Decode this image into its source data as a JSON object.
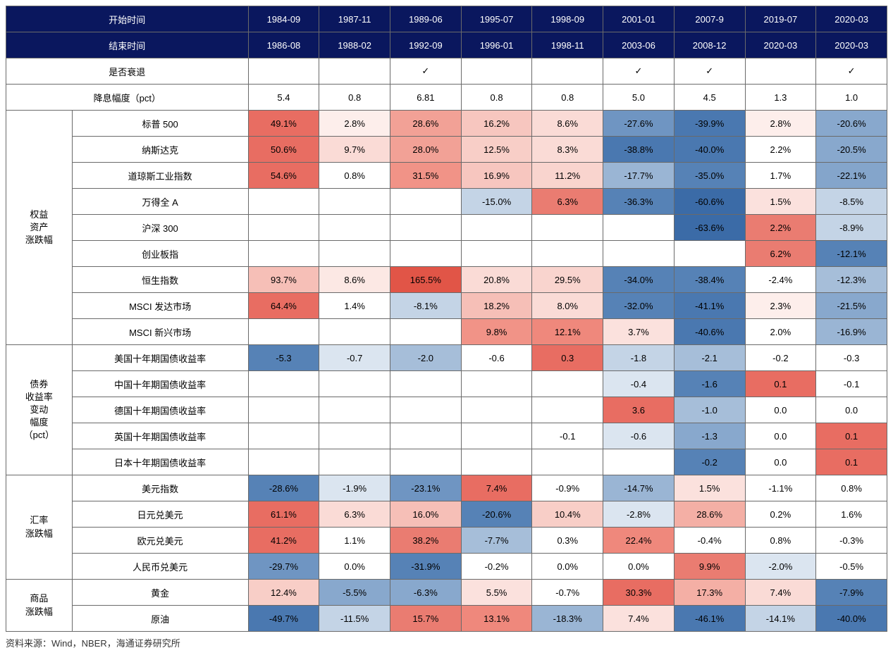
{
  "table": {
    "header": {
      "start_label": "开始时间",
      "end_label": "结束时间",
      "starts": [
        "1984-09",
        "1987-11",
        "1989-06",
        "1995-07",
        "1998-09",
        "2001-01",
        "2007-9",
        "2019-07",
        "2020-03"
      ],
      "ends": [
        "1986-08",
        "1988-02",
        "1992-09",
        "1996-01",
        "1998-11",
        "2003-06",
        "2008-12",
        "2020-03",
        "2020-03"
      ]
    },
    "recession": {
      "label": "是否衰退",
      "mark": "✓",
      "flags": [
        false,
        false,
        true,
        false,
        false,
        true,
        true,
        false,
        true
      ]
    },
    "rate_cut": {
      "label": "降息幅度（pct）",
      "values": [
        "5.4",
        "0.8",
        "6.81",
        "0.8",
        "0.8",
        "5.0",
        "4.5",
        "1.3",
        "1.0"
      ]
    },
    "groups": [
      {
        "label": "权益\n资产\n涨跌幅",
        "rows": [
          {
            "label": "标普 500",
            "cells": [
              {
                "v": "49.1%",
                "c": "#e86d62"
              },
              {
                "v": "2.8%",
                "c": "#fdeeeb"
              },
              {
                "v": "28.6%",
                "c": "#f2a196"
              },
              {
                "v": "16.2%",
                "c": "#f7c6bf"
              },
              {
                "v": "8.6%",
                "c": "#fadbd6"
              },
              {
                "v": "-27.6%",
                "c": "#6f95c2"
              },
              {
                "v": "-39.9%",
                "c": "#4a78b0"
              },
              {
                "v": "2.8%",
                "c": "#fdeeeb"
              },
              {
                "v": "-20.6%",
                "c": "#88a8cd"
              }
            ]
          },
          {
            "label": "纳斯达克",
            "cells": [
              {
                "v": "50.6%",
                "c": "#e86d62"
              },
              {
                "v": "9.7%",
                "c": "#fadbd6"
              },
              {
                "v": "28.0%",
                "c": "#f2a196"
              },
              {
                "v": "12.5%",
                "c": "#f8cec7"
              },
              {
                "v": "8.3%",
                "c": "#fadbd6"
              },
              {
                "v": "-38.8%",
                "c": "#4a78b0"
              },
              {
                "v": "-40.0%",
                "c": "#4a78b0"
              },
              {
                "v": "2.2%",
                "c": "#ffffff"
              },
              {
                "v": "-20.5%",
                "c": "#88a8cd"
              }
            ]
          },
          {
            "label": "道琼斯工业指数",
            "cells": [
              {
                "v": "54.6%",
                "c": "#e86d62"
              },
              {
                "v": "0.8%",
                "c": "#ffffff"
              },
              {
                "v": "31.5%",
                "c": "#f19387"
              },
              {
                "v": "16.9%",
                "c": "#f7c6bf"
              },
              {
                "v": "11.2%",
                "c": "#f9d4ce"
              },
              {
                "v": "-17.7%",
                "c": "#9ab5d4"
              },
              {
                "v": "-35.0%",
                "c": "#5682b6"
              },
              {
                "v": "1.7%",
                "c": "#ffffff"
              },
              {
                "v": "-22.1%",
                "c": "#84a5cb"
              }
            ]
          },
          {
            "label": "万得全 A",
            "cells": [
              {
                "v": "",
                "c": "#ffffff"
              },
              {
                "v": "",
                "c": "#ffffff"
              },
              {
                "v": "",
                "c": "#ffffff"
              },
              {
                "v": "-15.0%",
                "c": "#c4d4e6"
              },
              {
                "v": "6.3%",
                "c": "#ea7c71"
              },
              {
                "v": "-36.3%",
                "c": "#5682b6"
              },
              {
                "v": "-60.6%",
                "c": "#3b6ba7"
              },
              {
                "v": "1.5%",
                "c": "#fbe1dd"
              },
              {
                "v": "-8.5%",
                "c": "#c4d4e6"
              }
            ]
          },
          {
            "label": "沪深 300",
            "cells": [
              {
                "v": "",
                "c": "#ffffff"
              },
              {
                "v": "",
                "c": "#ffffff"
              },
              {
                "v": "",
                "c": "#ffffff"
              },
              {
                "v": "",
                "c": "#ffffff"
              },
              {
                "v": "",
                "c": "#ffffff"
              },
              {
                "v": "",
                "c": "#ffffff"
              },
              {
                "v": "-63.6%",
                "c": "#3b6ba7"
              },
              {
                "v": "2.2%",
                "c": "#ea7c71"
              },
              {
                "v": "-8.9%",
                "c": "#c4d4e6"
              }
            ]
          },
          {
            "label": "创业板指",
            "cells": [
              {
                "v": "",
                "c": "#ffffff"
              },
              {
                "v": "",
                "c": "#ffffff"
              },
              {
                "v": "",
                "c": "#ffffff"
              },
              {
                "v": "",
                "c": "#ffffff"
              },
              {
                "v": "",
                "c": "#ffffff"
              },
              {
                "v": "",
                "c": "#ffffff"
              },
              {
                "v": "",
                "c": "#ffffff"
              },
              {
                "v": "6.2%",
                "c": "#ea7c71"
              },
              {
                "v": "-12.1%",
                "c": "#5682b6"
              }
            ]
          },
          {
            "label": "恒生指数",
            "cells": [
              {
                "v": "93.7%",
                "c": "#f6bfb7"
              },
              {
                "v": "8.6%",
                "c": "#fce8e4"
              },
              {
                "v": "165.5%",
                "c": "#e15547"
              },
              {
                "v": "20.8%",
                "c": "#fadbd6"
              },
              {
                "v": "29.5%",
                "c": "#f9d4ce"
              },
              {
                "v": "-34.0%",
                "c": "#5682b6"
              },
              {
                "v": "-38.4%",
                "c": "#5682b6"
              },
              {
                "v": "-2.4%",
                "c": "#ffffff"
              },
              {
                "v": "-12.3%",
                "c": "#a6bed9"
              }
            ]
          },
          {
            "label": "MSCI 发达市场",
            "cells": [
              {
                "v": "64.4%",
                "c": "#e86d62"
              },
              {
                "v": "1.4%",
                "c": "#ffffff"
              },
              {
                "v": "-8.1%",
                "c": "#c4d4e6"
              },
              {
                "v": "18.2%",
                "c": "#f6bfb7"
              },
              {
                "v": "8.0%",
                "c": "#fadbd6"
              },
              {
                "v": "-32.0%",
                "c": "#5682b6"
              },
              {
                "v": "-41.1%",
                "c": "#4a78b0"
              },
              {
                "v": "2.3%",
                "c": "#fdeeeb"
              },
              {
                "v": "-21.5%",
                "c": "#88a8cd"
              }
            ]
          },
          {
            "label": "MSCI 新兴市场",
            "cells": [
              {
                "v": "",
                "c": "#ffffff"
              },
              {
                "v": "",
                "c": "#ffffff"
              },
              {
                "v": "",
                "c": "#ffffff"
              },
              {
                "v": "9.8%",
                "c": "#f19387"
              },
              {
                "v": "12.1%",
                "c": "#ef887c"
              },
              {
                "v": "3.7%",
                "c": "#fbe1dd"
              },
              {
                "v": "-40.6%",
                "c": "#4a78b0"
              },
              {
                "v": "2.0%",
                "c": "#ffffff"
              },
              {
                "v": "-16.9%",
                "c": "#9ab5d4"
              }
            ]
          }
        ]
      },
      {
        "label": "债券\n收益率\n变动\n幅度\n（pct）",
        "rows": [
          {
            "label": "美国十年期国债收益率",
            "cells": [
              {
                "v": "-5.3",
                "c": "#5682b6"
              },
              {
                "v": "-0.7",
                "c": "#dbe5f0"
              },
              {
                "v": "-2.0",
                "c": "#a6bed9"
              },
              {
                "v": "-0.6",
                "c": "#ffffff"
              },
              {
                "v": "0.3",
                "c": "#e86d62"
              },
              {
                "v": "-1.8",
                "c": "#c4d4e6"
              },
              {
                "v": "-2.1",
                "c": "#a6bed9"
              },
              {
                "v": "-0.2",
                "c": "#ffffff"
              },
              {
                "v": "-0.3",
                "c": "#ffffff"
              }
            ]
          },
          {
            "label": "中国十年期国债收益率",
            "cells": [
              {
                "v": "",
                "c": "#ffffff"
              },
              {
                "v": "",
                "c": "#ffffff"
              },
              {
                "v": "",
                "c": "#ffffff"
              },
              {
                "v": "",
                "c": "#ffffff"
              },
              {
                "v": "",
                "c": "#ffffff"
              },
              {
                "v": "-0.4",
                "c": "#dbe5f0"
              },
              {
                "v": "-1.6",
                "c": "#5682b6"
              },
              {
                "v": "0.1",
                "c": "#e86d62"
              },
              {
                "v": "-0.1",
                "c": "#ffffff"
              }
            ]
          },
          {
            "label": "德国十年期国债收益率",
            "cells": [
              {
                "v": "",
                "c": "#ffffff"
              },
              {
                "v": "",
                "c": "#ffffff"
              },
              {
                "v": "",
                "c": "#ffffff"
              },
              {
                "v": "",
                "c": "#ffffff"
              },
              {
                "v": "",
                "c": "#ffffff"
              },
              {
                "v": "3.6",
                "c": "#e86d62"
              },
              {
                "v": "-1.0",
                "c": "#a6bed9"
              },
              {
                "v": "0.0",
                "c": "#ffffff"
              },
              {
                "v": "0.0",
                "c": "#ffffff"
              }
            ]
          },
          {
            "label": "英国十年期国债收益率",
            "cells": [
              {
                "v": "",
                "c": "#ffffff"
              },
              {
                "v": "",
                "c": "#ffffff"
              },
              {
                "v": "",
                "c": "#ffffff"
              },
              {
                "v": "",
                "c": "#ffffff"
              },
              {
                "v": "-0.1",
                "c": "#ffffff"
              },
              {
                "v": "-0.6",
                "c": "#dbe5f0"
              },
              {
                "v": "-1.3",
                "c": "#88a8cd"
              },
              {
                "v": "0.0",
                "c": "#ffffff"
              },
              {
                "v": "0.1",
                "c": "#e86d62"
              }
            ]
          },
          {
            "label": "日本十年期国债收益率",
            "cells": [
              {
                "v": "",
                "c": "#ffffff"
              },
              {
                "v": "",
                "c": "#ffffff"
              },
              {
                "v": "",
                "c": "#ffffff"
              },
              {
                "v": "",
                "c": "#ffffff"
              },
              {
                "v": "",
                "c": "#ffffff"
              },
              {
                "v": "",
                "c": "#ffffff"
              },
              {
                "v": "-0.2",
                "c": "#5682b6"
              },
              {
                "v": "0.0",
                "c": "#ffffff"
              },
              {
                "v": "0.1",
                "c": "#e86d62"
              }
            ]
          }
        ]
      },
      {
        "label": "汇率\n涨跌幅",
        "rows": [
          {
            "label": "美元指数",
            "cells": [
              {
                "v": "-28.6%",
                "c": "#5682b6"
              },
              {
                "v": "-1.9%",
                "c": "#dbe5f0"
              },
              {
                "v": "-23.1%",
                "c": "#6f95c2"
              },
              {
                "v": "7.4%",
                "c": "#e86d62"
              },
              {
                "v": "-0.9%",
                "c": "#ffffff"
              },
              {
                "v": "-14.7%",
                "c": "#9ab5d4"
              },
              {
                "v": "1.5%",
                "c": "#fbe1dd"
              },
              {
                "v": "-1.1%",
                "c": "#ffffff"
              },
              {
                "v": "0.8%",
                "c": "#ffffff"
              }
            ]
          },
          {
            "label": "日元兑美元",
            "cells": [
              {
                "v": "61.1%",
                "c": "#e86d62"
              },
              {
                "v": "6.3%",
                "c": "#fadbd6"
              },
              {
                "v": "16.0%",
                "c": "#f6bfb7"
              },
              {
                "v": "-20.6%",
                "c": "#5682b6"
              },
              {
                "v": "10.4%",
                "c": "#f8cec7"
              },
              {
                "v": "-2.8%",
                "c": "#dbe5f0"
              },
              {
                "v": "28.6%",
                "c": "#f4afa5"
              },
              {
                "v": "0.2%",
                "c": "#ffffff"
              },
              {
                "v": "1.6%",
                "c": "#ffffff"
              }
            ]
          },
          {
            "label": "欧元兑美元",
            "cells": [
              {
                "v": "41.2%",
                "c": "#e86d62"
              },
              {
                "v": "1.1%",
                "c": "#ffffff"
              },
              {
                "v": "38.2%",
                "c": "#ea7c71"
              },
              {
                "v": "-7.7%",
                "c": "#a6bed9"
              },
              {
                "v": "0.3%",
                "c": "#ffffff"
              },
              {
                "v": "22.4%",
                "c": "#ef887c"
              },
              {
                "v": "-0.4%",
                "c": "#ffffff"
              },
              {
                "v": "0.8%",
                "c": "#ffffff"
              },
              {
                "v": "-0.3%",
                "c": "#ffffff"
              }
            ]
          },
          {
            "label": "人民币兑美元",
            "cells": [
              {
                "v": "-29.7%",
                "c": "#6f95c2"
              },
              {
                "v": "0.0%",
                "c": "#ffffff"
              },
              {
                "v": "-31.9%",
                "c": "#5682b6"
              },
              {
                "v": "-0.2%",
                "c": "#ffffff"
              },
              {
                "v": "0.0%",
                "c": "#ffffff"
              },
              {
                "v": "0.0%",
                "c": "#ffffff"
              },
              {
                "v": "9.9%",
                "c": "#ea7c71"
              },
              {
                "v": "-2.0%",
                "c": "#dbe5f0"
              },
              {
                "v": "-0.5%",
                "c": "#ffffff"
              }
            ]
          }
        ]
      },
      {
        "label": "商品\n涨跌幅",
        "rows": [
          {
            "label": "黄金",
            "cells": [
              {
                "v": "12.4%",
                "c": "#f8cec7"
              },
              {
                "v": "-5.5%",
                "c": "#88a8cd"
              },
              {
                "v": "-6.3%",
                "c": "#88a8cd"
              },
              {
                "v": "5.5%",
                "c": "#fbe1dd"
              },
              {
                "v": "-0.7%",
                "c": "#ffffff"
              },
              {
                "v": "30.3%",
                "c": "#e86d62"
              },
              {
                "v": "17.3%",
                "c": "#f4afa5"
              },
              {
                "v": "7.4%",
                "c": "#fadbd6"
              },
              {
                "v": "-7.9%",
                "c": "#5682b6"
              }
            ]
          },
          {
            "label": "原油",
            "cells": [
              {
                "v": "-49.7%",
                "c": "#4a78b0"
              },
              {
                "v": "-11.5%",
                "c": "#c4d4e6"
              },
              {
                "v": "15.7%",
                "c": "#ea7c71"
              },
              {
                "v": "13.1%",
                "c": "#ef887c"
              },
              {
                "v": "-18.3%",
                "c": "#9ab5d4"
              },
              {
                "v": "7.4%",
                "c": "#fbe1dd"
              },
              {
                "v": "-46.1%",
                "c": "#4a78b0"
              },
              {
                "v": "-14.1%",
                "c": "#c4d4e6"
              },
              {
                "v": "-40.0%",
                "c": "#4a78b0"
              }
            ]
          }
        ]
      }
    ]
  },
  "footnote": "资料来源：Wind，NBER，海通证券研究所",
  "colors": {
    "header_bg": "#0a175e",
    "header_fg": "#ffffff",
    "border": "#6a6a6a"
  }
}
